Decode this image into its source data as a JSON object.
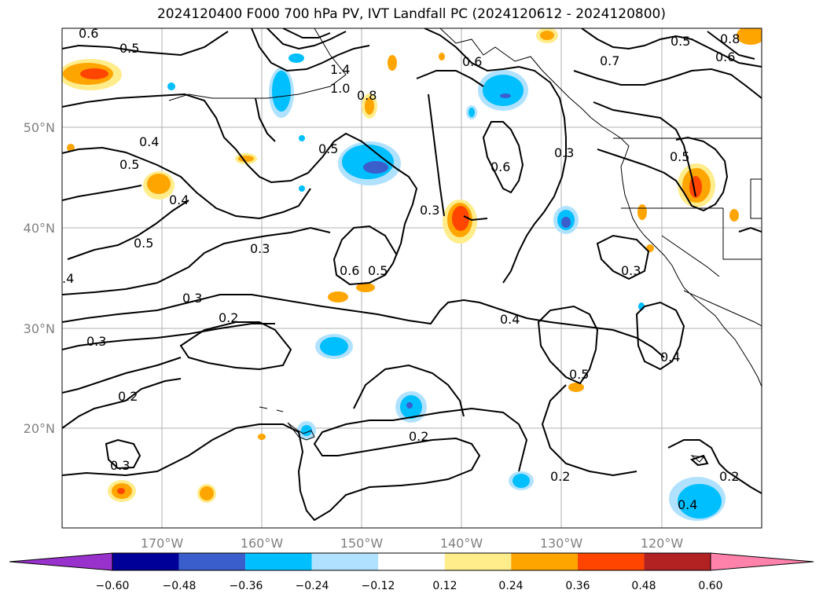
{
  "title": "2024120400 F000 700 hPa PV, IVT Landfall PC (2024120612 - 2024120800)",
  "lat_ticks": [
    "50°N",
    "40°N",
    "30°N",
    "20°N"
  ],
  "lon_ticks": [
    "170°W",
    "160°W",
    "150°W",
    "140°W",
    "130°W",
    "120°W"
  ],
  "contour_labels": [
    "0.6",
    "0.5",
    "1.4",
    "1.0",
    "0.8",
    "0.6",
    "0.7",
    "0.5",
    "0.6",
    "0.8",
    "0.4",
    "0.5",
    "0.5",
    "0.4",
    "0.6",
    "0.3",
    "0.5",
    "0.3",
    "0.5",
    "0.3",
    "0.6",
    "0.5",
    "0.3",
    "0.4",
    "0.3",
    "0.2",
    "0.3",
    "0.4",
    "0.5",
    "0.4",
    "0.2",
    "0.2",
    "0.3",
    "0.2",
    "0.2",
    ".4"
  ],
  "colorbar": {
    "colors": [
      "#9932cc",
      "#000099",
      "#3a5fcd",
      "#00bfff",
      "#b0e2ff",
      "#ffffff",
      "#ffec8b",
      "#ffa500",
      "#ff4500",
      "#b22222",
      "#ff82ab"
    ],
    "tick_labels": [
      "−0.60",
      "−0.48",
      "−0.36",
      "−0.24",
      "−0.12",
      "0.12",
      "0.24",
      "0.36",
      "0.48",
      "0.60"
    ]
  }
}
